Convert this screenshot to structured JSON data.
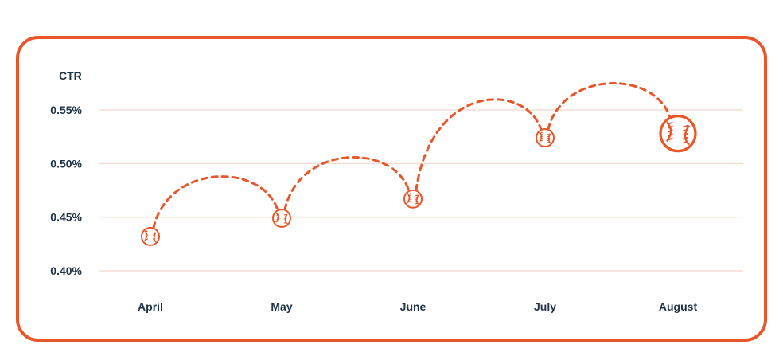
{
  "chart_data": {
    "type": "line",
    "ylabel": "CTR",
    "categories": [
      "April",
      "May",
      "June",
      "July",
      "August"
    ],
    "series": [
      {
        "values": [
          0.432,
          0.449,
          0.467,
          0.524,
          0.528
        ]
      }
    ],
    "yticks": [
      "0.40%",
      "0.45%",
      "0.50%",
      "0.55%"
    ],
    "ytick_values": [
      0.4,
      0.45,
      0.5,
      0.55
    ],
    "ylim": [
      0.4,
      0.55
    ],
    "grid": true,
    "marker": "baseball-icon",
    "colors": {
      "accent": "#e8562a",
      "grid": "#f7ddd5",
      "text": "#1f3347"
    }
  }
}
